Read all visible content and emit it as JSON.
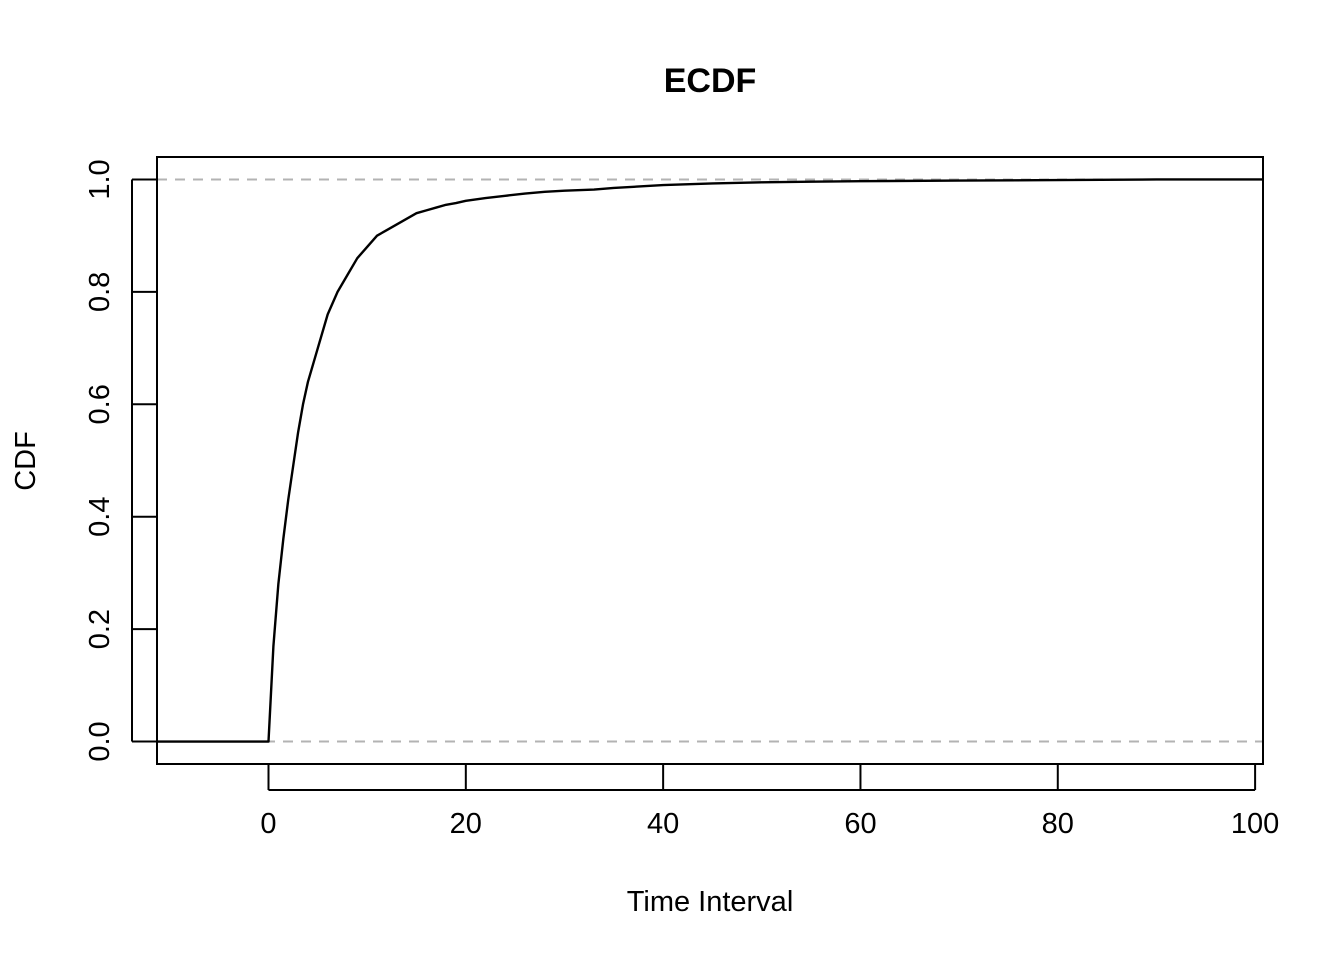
{
  "chart_data": {
    "type": "line",
    "title": "ECDF",
    "xlabel": "Time Interval",
    "ylabel": "CDF",
    "xlim": [
      -11.3,
      100.8
    ],
    "ylim": [
      -0.04,
      1.04
    ],
    "x_ticks": [
      "0",
      "20",
      "40",
      "60",
      "80",
      "100"
    ],
    "y_ticks": [
      "0.0",
      "0.2",
      "0.4",
      "0.6",
      "0.8",
      "1.0"
    ],
    "reference_lines": [
      0,
      1
    ],
    "grid": false,
    "series": [
      {
        "x": [
          -11.3,
          0,
          0.5,
          1,
          1.5,
          2,
          2.5,
          3,
          3.5,
          4,
          5,
          6,
          7,
          8,
          9,
          10,
          11,
          12,
          13,
          14,
          15,
          16,
          17,
          18,
          19,
          20,
          22,
          24,
          26,
          28,
          30,
          33,
          35,
          40,
          45,
          50,
          55,
          60,
          70,
          80,
          90,
          100.8
        ],
        "y": [
          0,
          0,
          0.17,
          0.28,
          0.36,
          0.43,
          0.49,
          0.55,
          0.6,
          0.64,
          0.7,
          0.76,
          0.8,
          0.83,
          0.86,
          0.88,
          0.9,
          0.91,
          0.92,
          0.93,
          0.94,
          0.945,
          0.95,
          0.955,
          0.958,
          0.962,
          0.967,
          0.971,
          0.975,
          0.978,
          0.98,
          0.982,
          0.985,
          0.99,
          0.993,
          0.995,
          0.996,
          0.997,
          0.998,
          0.999,
          1.0,
          1.0
        ]
      }
    ]
  }
}
